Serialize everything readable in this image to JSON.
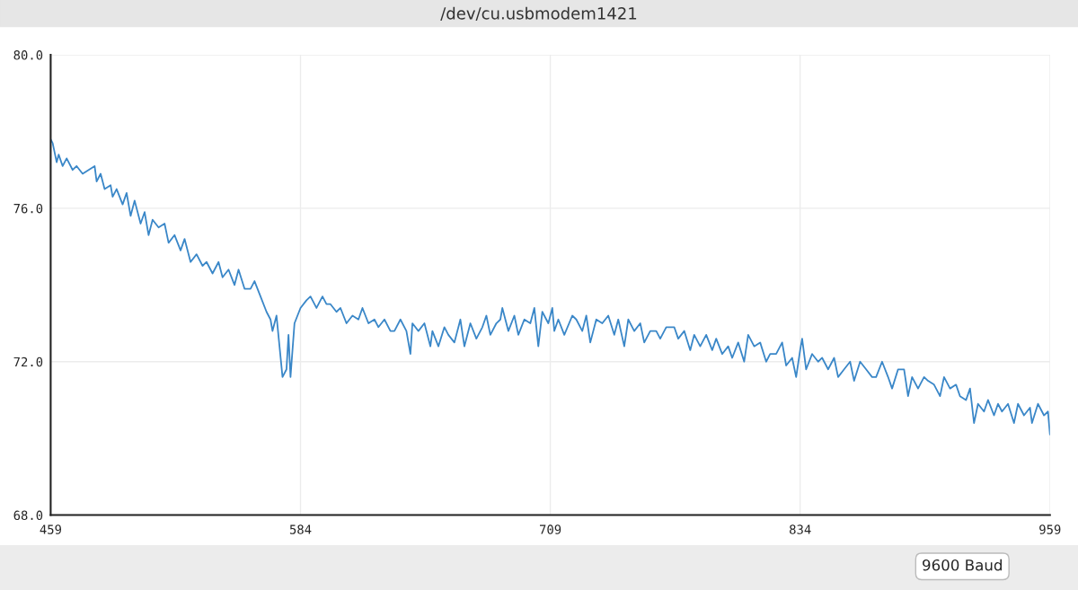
{
  "chart_data": {
    "type": "line",
    "title": "/dev/cu.usbmodem1421",
    "x": [
      459,
      460,
      462,
      463,
      465,
      467,
      470,
      472,
      475,
      478,
      481,
      482,
      484,
      486,
      489,
      490,
      492,
      495,
      497,
      499,
      501,
      504,
      506,
      508,
      510,
      513,
      516,
      518,
      521,
      524,
      526,
      529,
      532,
      535,
      537,
      540,
      543,
      545,
      548,
      551,
      553,
      556,
      559,
      561,
      564,
      567,
      569,
      570,
      572,
      575,
      577,
      578,
      579,
      581,
      584,
      587,
      589,
      592,
      595,
      597,
      599,
      602,
      604,
      607,
      610,
      613,
      615,
      618,
      621,
      623,
      626,
      629,
      631,
      634,
      637,
      639,
      640,
      643,
      646,
      649,
      650,
      653,
      656,
      658,
      661,
      664,
      666,
      669,
      672,
      675,
      677,
      679,
      682,
      684,
      685,
      688,
      691,
      693,
      696,
      699,
      701,
      703,
      705,
      708,
      710,
      711,
      713,
      716,
      720,
      722,
      725,
      727,
      729,
      732,
      735,
      738,
      741,
      743,
      746,
      748,
      751,
      754,
      756,
      759,
      762,
      764,
      767,
      771,
      773,
      776,
      779,
      781,
      784,
      787,
      790,
      792,
      795,
      798,
      800,
      803,
      806,
      808,
      811,
      814,
      817,
      819,
      822,
      825,
      827,
      830,
      832,
      834,
      835,
      837,
      840,
      843,
      845,
      848,
      851,
      853,
      856,
      859,
      861,
      864,
      867,
      870,
      872,
      875,
      878,
      880,
      883,
      886,
      888,
      890,
      893,
      896,
      898,
      901,
      904,
      906,
      909,
      912,
      914,
      917,
      919,
      921,
      923,
      926,
      928,
      931,
      933,
      935,
      938,
      941,
      943,
      946,
      949,
      950,
      953,
      956,
      958,
      959
    ],
    "series": [
      {
        "color": "#3a87c8",
        "values": [
          77.8,
          77.7,
          77.2,
          77.4,
          77.1,
          77.3,
          77.0,
          77.1,
          76.9,
          77.0,
          77.1,
          76.7,
          76.9,
          76.5,
          76.6,
          76.3,
          76.5,
          76.1,
          76.4,
          75.8,
          76.2,
          75.6,
          75.9,
          75.3,
          75.7,
          75.5,
          75.6,
          75.1,
          75.3,
          74.9,
          75.2,
          74.6,
          74.8,
          74.5,
          74.6,
          74.3,
          74.6,
          74.2,
          74.4,
          74.0,
          74.4,
          73.9,
          73.9,
          74.1,
          73.7,
          73.3,
          73.1,
          72.8,
          73.2,
          71.6,
          71.8,
          72.7,
          71.6,
          73.0,
          73.4,
          73.6,
          73.7,
          73.4,
          73.7,
          73.5,
          73.5,
          73.3,
          73.4,
          73.0,
          73.2,
          73.1,
          73.4,
          73.0,
          73.1,
          72.9,
          73.1,
          72.8,
          72.8,
          73.1,
          72.8,
          72.2,
          73.0,
          72.8,
          73.0,
          72.4,
          72.8,
          72.4,
          72.9,
          72.7,
          72.5,
          73.1,
          72.4,
          73.0,
          72.6,
          72.9,
          73.2,
          72.7,
          73.0,
          73.1,
          73.4,
          72.8,
          73.2,
          72.7,
          73.1,
          73.0,
          73.4,
          72.4,
          73.3,
          73.0,
          73.4,
          72.8,
          73.1,
          72.7,
          73.2,
          73.1,
          72.8,
          73.2,
          72.5,
          73.1,
          73.0,
          73.2,
          72.7,
          73.1,
          72.4,
          73.1,
          72.8,
          73.0,
          72.5,
          72.8,
          72.8,
          72.6,
          72.9,
          72.9,
          72.6,
          72.8,
          72.3,
          72.7,
          72.4,
          72.7,
          72.3,
          72.6,
          72.2,
          72.4,
          72.1,
          72.5,
          72.0,
          72.7,
          72.4,
          72.5,
          72.0,
          72.2,
          72.2,
          72.5,
          71.9,
          72.1,
          71.6,
          72.3,
          72.6,
          71.8,
          72.2,
          72.0,
          72.1,
          71.8,
          72.1,
          71.6,
          71.8,
          72.0,
          71.5,
          72.0,
          71.8,
          71.6,
          71.6,
          72.0,
          71.6,
          71.3,
          71.8,
          71.8,
          71.1,
          71.6,
          71.3,
          71.6,
          71.5,
          71.4,
          71.1,
          71.6,
          71.3,
          71.4,
          71.1,
          71.0,
          71.3,
          70.4,
          70.9,
          70.7,
          71.0,
          70.6,
          70.9,
          70.7,
          70.9,
          70.4,
          70.9,
          70.6,
          70.8,
          70.4,
          70.9,
          70.6,
          70.7,
          70.1
        ]
      }
    ],
    "xlim": [
      459,
      959
    ],
    "xticks": [
      459,
      584,
      709,
      834,
      959
    ],
    "ylim": [
      68,
      80
    ],
    "yticks": [
      {
        "value": 68,
        "label": "68.0"
      },
      {
        "value": 72,
        "label": "72.0"
      },
      {
        "value": 76,
        "label": "76.0"
      },
      {
        "value": 80,
        "label": "80.0"
      }
    ],
    "grid": true,
    "marker": "none",
    "line_style": "solid",
    "annotations": [
      "9600 Baud"
    ]
  }
}
